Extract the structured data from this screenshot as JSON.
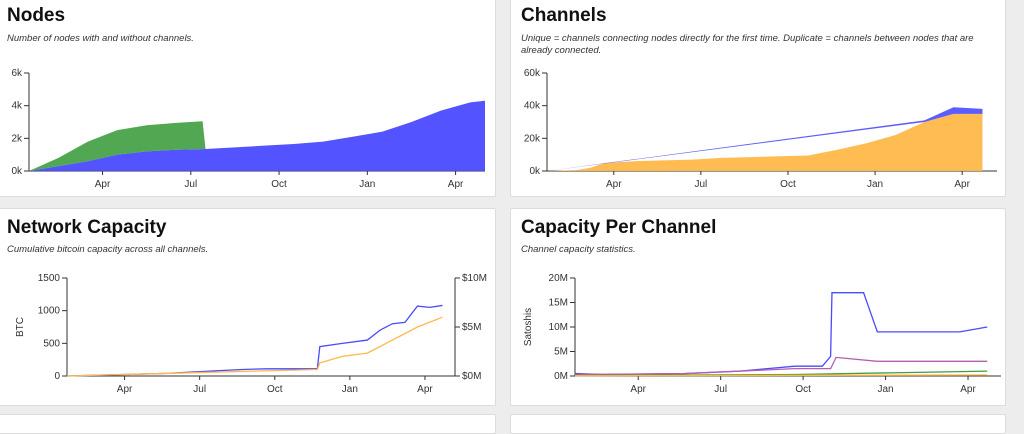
{
  "colors": {
    "blue": "#4a4aff",
    "green": "#3f9f3f",
    "orange": "#ffb84a",
    "purple": "#b060b0"
  },
  "panels": {
    "nodes": {
      "title": "Nodes",
      "subtitle": "Number of nodes with and without channels."
    },
    "channels": {
      "title": "Channels",
      "subtitle": "Unique = channels connecting nodes directly for the first time. Duplicate = channels between nodes that are already connected."
    },
    "capacity": {
      "title": "Network Capacity",
      "subtitle": "Cumulative bitcoin capacity across all channels."
    },
    "per_channel": {
      "title": "Capacity Per Channel",
      "subtitle": "Channel capacity statistics."
    }
  },
  "chart_data": [
    {
      "id": "nodes",
      "type": "area",
      "stacked": true,
      "x_ticks": [
        "Apr",
        "Jul",
        "Oct",
        "Jan",
        "Apr"
      ],
      "y_ticks": [
        "6k",
        "4k",
        "2k",
        "0k"
      ],
      "ylim": [
        0,
        6000
      ],
      "series": [
        {
          "color": "blue",
          "x": [
            0,
            1,
            2,
            3,
            4,
            5,
            6,
            7,
            8,
            9,
            10,
            11,
            12,
            13,
            14,
            15,
            15.5
          ],
          "values": [
            0,
            300,
            600,
            1000,
            1200,
            1300,
            1350,
            1450,
            1550,
            1650,
            1800,
            2100,
            2400,
            3000,
            3700,
            4200,
            4300
          ]
        },
        {
          "color": "green",
          "x": [
            0,
            1,
            2,
            3,
            4,
            5,
            5.9,
            6,
            15.5
          ],
          "values": [
            0,
            500,
            1200,
            1500,
            1600,
            1650,
            1700,
            0,
            0
          ]
        }
      ]
    },
    {
      "id": "channels",
      "type": "area",
      "stacked": true,
      "x_ticks": [
        "Apr",
        "Jul",
        "Oct",
        "Jan",
        "Apr"
      ],
      "y_ticks": [
        "60k",
        "40k",
        "20k",
        "0k"
      ],
      "ylim": [
        0,
        60000
      ],
      "series": [
        {
          "color": "orange",
          "x": [
            0,
            1,
            1.5,
            2,
            3,
            4,
            5,
            6,
            7,
            8,
            9,
            10,
            11,
            12,
            13,
            14,
            15
          ],
          "values": [
            0,
            500,
            2000,
            5000,
            6000,
            6500,
            7000,
            8000,
            8500,
            9000,
            9500,
            13000,
            17000,
            22000,
            30000,
            35000,
            35000
          ]
        },
        {
          "color": "blue",
          "x": [
            0,
            13,
            14,
            15
          ],
          "values": [
            0,
            1000,
            4000,
            3000
          ]
        }
      ]
    },
    {
      "id": "capacity",
      "type": "line",
      "x_ticks": [
        "Apr",
        "Jul",
        "Oct",
        "Jan",
        "Apr"
      ],
      "ylabel": "BTC",
      "y_ticks_left": [
        "1500",
        "1000",
        "500",
        "0"
      ],
      "y_ticks_right": [
        "$10M",
        "$5M",
        "$0M"
      ],
      "ylim": [
        0,
        1500
      ],
      "series": [
        {
          "color": "blue",
          "x": [
            0,
            2,
            4,
            5,
            6,
            7,
            8,
            9,
            10,
            10.1,
            11,
            12,
            12.5,
            12.6,
            13,
            13.5,
            14,
            14.5,
            15
          ],
          "values": [
            0,
            20,
            40,
            60,
            80,
            100,
            110,
            110,
            110,
            450,
            500,
            550,
            700,
            720,
            800,
            820,
            1070,
            1050,
            1080
          ]
        },
        {
          "color": "orange",
          "x": [
            0,
            6,
            10,
            10.1,
            11,
            12,
            13,
            14,
            15
          ],
          "values": [
            0,
            60,
            100,
            200,
            300,
            350,
            550,
            750,
            900
          ]
        }
      ]
    },
    {
      "id": "per_channel",
      "type": "line",
      "x_ticks": [
        "Apr",
        "Jul",
        "Oct",
        "Jan",
        "Apr"
      ],
      "ylabel": "Satoshis",
      "y_ticks": [
        "20M",
        "15M",
        "10M",
        "5M",
        "0M"
      ],
      "ylim": [
        0,
        20000000
      ],
      "series": [
        {
          "color": "blue",
          "x": [
            0,
            1,
            4,
            6,
            8,
            9,
            9.3,
            9.35,
            10.5,
            11,
            14,
            15
          ],
          "values": [
            500000,
            300000,
            500000,
            1000000,
            2000000,
            2000000,
            4000000,
            17000000,
            17000000,
            9000000,
            9000000,
            10000000
          ]
        },
        {
          "color": "purple",
          "x": [
            0,
            4,
            8,
            9.3,
            9.5,
            11,
            15
          ],
          "values": [
            300000,
            500000,
            1500000,
            1500000,
            3800000,
            3000000,
            3000000
          ]
        },
        {
          "color": "green",
          "x": [
            0,
            8,
            15
          ],
          "values": [
            100000,
            300000,
            1000000
          ]
        },
        {
          "color": "orange",
          "x": [
            0,
            15
          ],
          "values": [
            50000,
            200000
          ]
        }
      ]
    }
  ]
}
